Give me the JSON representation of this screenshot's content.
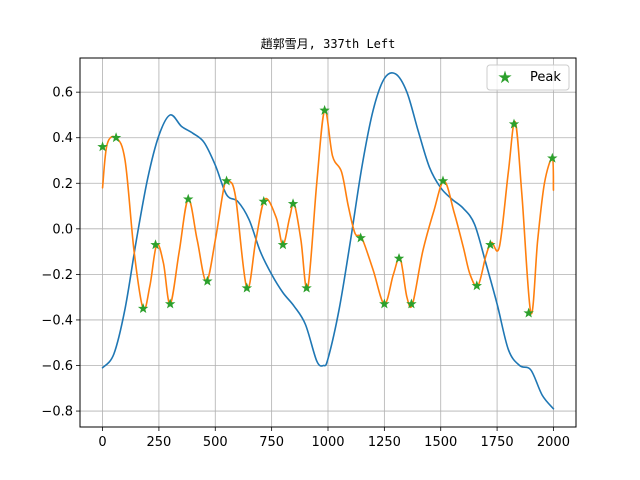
{
  "chart_data": {
    "type": "line",
    "title": "趙郭雪月, 337th Left",
    "xlabel": "",
    "ylabel": "",
    "xlim": [
      -100,
      2100
    ],
    "ylim": [
      -0.87,
      0.75
    ],
    "xticks": [
      0,
      250,
      500,
      750,
      1000,
      1250,
      1500,
      1750,
      2000
    ],
    "yticks": [
      -0.8,
      -0.6,
      -0.4,
      -0.2,
      0.0,
      0.2,
      0.4,
      0.6
    ],
    "xtick_labels": [
      "0",
      "250",
      "500",
      "750",
      "1000",
      "1250",
      "1500",
      "1750",
      "2000"
    ],
    "ytick_labels": [
      "−0.8",
      "−0.6",
      "−0.4",
      "−0.2",
      "0.0",
      "0.2",
      "0.4",
      "0.6"
    ],
    "grid": true,
    "legend_position": "upper-right",
    "series": [
      {
        "color": "#1f77b4",
        "x": [
          0,
          50,
          100,
          150,
          200,
          250,
          300,
          350,
          400,
          450,
          500,
          550,
          600,
          650,
          700,
          750,
          800,
          850,
          900,
          950,
          980,
          1000,
          1050,
          1100,
          1150,
          1200,
          1250,
          1300,
          1350,
          1400,
          1450,
          1500,
          1550,
          1600,
          1650,
          1700,
          1750,
          1800,
          1850,
          1900,
          1950,
          2000
        ],
        "y": [
          -0.61,
          -0.55,
          -0.35,
          -0.05,
          0.22,
          0.41,
          0.5,
          0.45,
          0.42,
          0.38,
          0.28,
          0.15,
          0.12,
          0.04,
          -0.1,
          -0.2,
          -0.28,
          -0.34,
          -0.42,
          -0.58,
          -0.6,
          -0.57,
          -0.35,
          -0.05,
          0.27,
          0.52,
          0.66,
          0.68,
          0.6,
          0.43,
          0.27,
          0.18,
          0.13,
          0.09,
          0.02,
          -0.15,
          -0.33,
          -0.53,
          -0.6,
          -0.62,
          -0.73,
          -0.79
        ]
      },
      {
        "color": "#ff7f0e",
        "x": [
          0,
          20,
          60,
          100,
          140,
          180,
          210,
          240,
          270,
          300,
          340,
          380,
          420,
          460,
          500,
          540,
          560,
          590,
          640,
          680,
          720,
          770,
          800,
          830,
          850,
          880,
          910,
          950,
          985,
          1020,
          1060,
          1090,
          1120,
          1150,
          1200,
          1250,
          1290,
          1320,
          1350,
          1375,
          1420,
          1470,
          1515,
          1560,
          1600,
          1630,
          1665,
          1700,
          1725,
          1760,
          1800,
          1830,
          1860,
          1900,
          1930,
          1960,
          1995,
          2000
        ],
        "y": [
          0.18,
          0.37,
          0.4,
          0.3,
          -0.1,
          -0.35,
          -0.25,
          -0.07,
          -0.15,
          -0.33,
          -0.1,
          0.13,
          -0.05,
          -0.23,
          -0.05,
          0.19,
          0.21,
          0.14,
          -0.26,
          -0.05,
          0.13,
          0.05,
          -0.07,
          0.05,
          0.11,
          -0.05,
          -0.26,
          0.2,
          0.52,
          0.32,
          0.25,
          0.1,
          -0.02,
          -0.04,
          -0.18,
          -0.33,
          -0.2,
          -0.13,
          -0.3,
          -0.33,
          -0.1,
          0.08,
          0.21,
          0.07,
          -0.08,
          -0.2,
          -0.25,
          -0.12,
          -0.06,
          -0.08,
          0.25,
          0.47,
          0.15,
          -0.37,
          -0.05,
          0.2,
          0.31,
          0.17
        ]
      }
    ],
    "peaks": {
      "name": "Peak",
      "color": "#2ca02c",
      "x": [
        0,
        60,
        180,
        235,
        300,
        380,
        465,
        550,
        640,
        715,
        800,
        845,
        905,
        985,
        1145,
        1250,
        1315,
        1370,
        1510,
        1660,
        1720,
        1825,
        1890,
        1995
      ],
      "y": [
        0.36,
        0.4,
        -0.35,
        -0.07,
        -0.33,
        0.13,
        -0.23,
        0.21,
        -0.26,
        0.12,
        -0.07,
        0.11,
        -0.26,
        0.52,
        -0.04,
        -0.33,
        -0.13,
        -0.33,
        0.21,
        -0.25,
        -0.07,
        0.46,
        -0.37,
        0.31
      ]
    }
  }
}
